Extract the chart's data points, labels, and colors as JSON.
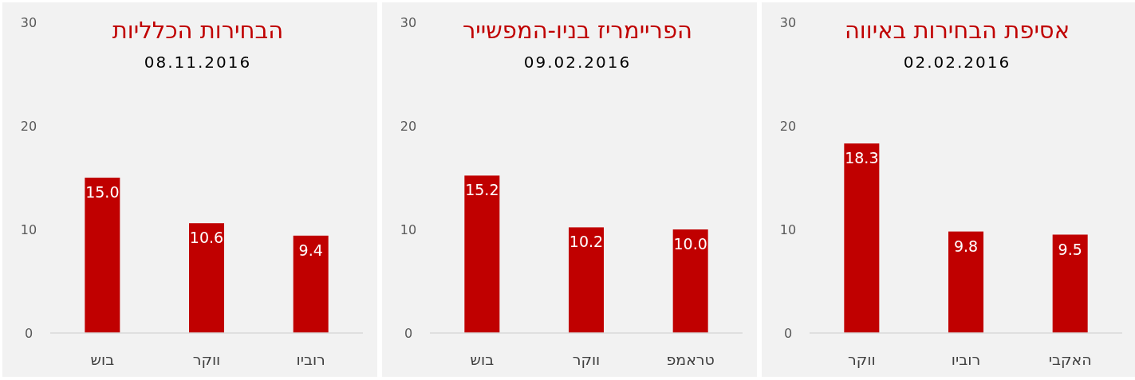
{
  "chart_data": [
    {
      "type": "bar",
      "title": "הבחירות הכלליות",
      "subtitle": "08.11.2016",
      "categories": [
        "בוש",
        "ווקר",
        "רוביו"
      ],
      "values": [
        15.0,
        10.6,
        9.4
      ],
      "value_labels": [
        "15.0",
        "10.6",
        "9.4"
      ],
      "color": "#c00000",
      "ylim": [
        0,
        30
      ],
      "yticks": [
        0,
        10,
        20,
        30
      ],
      "grid": false
    },
    {
      "type": "bar",
      "title": "הפריימריז בניו-המפשייר",
      "subtitle": "09.02.2016",
      "categories": [
        "בוש",
        "ווקר",
        "טראמפ"
      ],
      "values": [
        15.2,
        10.2,
        10.0
      ],
      "value_labels": [
        "15.2",
        "10.2",
        "10.0"
      ],
      "color": "#c00000",
      "ylim": [
        0,
        30
      ],
      "yticks": [
        0,
        10,
        20,
        30
      ],
      "grid": false
    },
    {
      "type": "bar",
      "title": "אסיפת הבחירות באיווה",
      "subtitle": "02.02.2016",
      "categories": [
        "ווקר",
        "רוביו",
        "האקבי"
      ],
      "values": [
        18.3,
        9.8,
        9.5
      ],
      "value_labels": [
        "18.3",
        "9.8",
        "9.5"
      ],
      "color": "#c00000",
      "ylim": [
        0,
        30
      ],
      "yticks": [
        0,
        10,
        20,
        30
      ],
      "grid": false
    }
  ]
}
